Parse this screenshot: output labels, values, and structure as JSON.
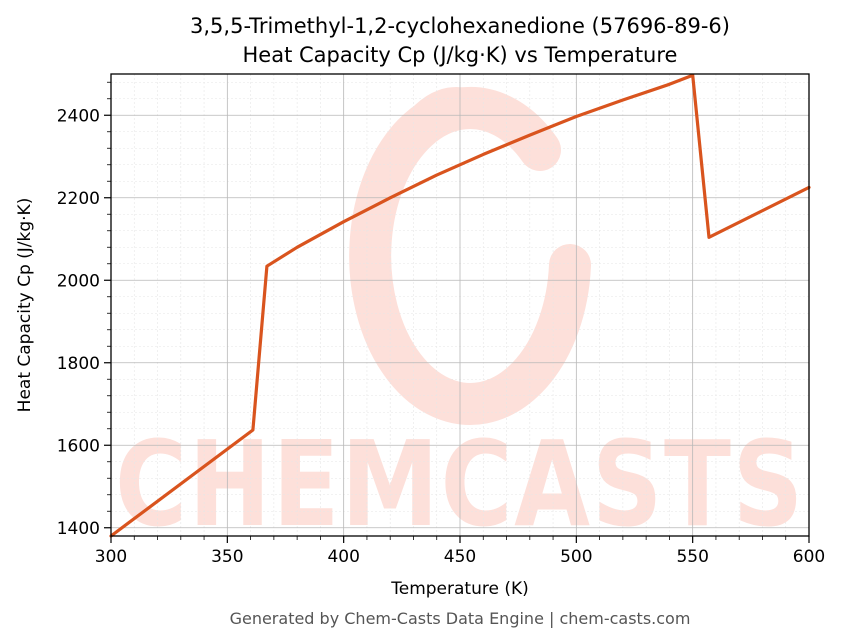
{
  "chart_data": {
    "type": "line",
    "title": "3,5,5-Trimethyl-1,2-cyclohexanedione (57696-89-6)",
    "subtitle": "Heat Capacity Cp (J/kg·K) vs Temperature",
    "xlabel": "Temperature (K)",
    "ylabel": "Heat Capacity Cp (J/kg·K)",
    "xlim": [
      300,
      600
    ],
    "ylim": [
      1380,
      2500
    ],
    "xticks": [
      300,
      350,
      400,
      450,
      500,
      550,
      600
    ],
    "yticks": [
      1400,
      1600,
      1800,
      2000,
      2200,
      2400
    ],
    "grid": true,
    "color": "#d9541e",
    "series": [
      {
        "x": [
          300,
          361,
          367,
          380,
          400,
          420,
          440,
          460,
          480,
          500,
          520,
          540,
          550,
          557,
          600
        ],
        "y": [
          1380,
          1637,
          2034,
          2080,
          2142,
          2200,
          2255,
          2305,
          2352,
          2397,
          2437,
          2475,
          2497,
          2104,
          2225
        ]
      }
    ]
  },
  "watermark": {
    "text": "CHEMCASTS",
    "color": "#fde0da"
  },
  "footer": "Generated by Chem-Casts Data Engine | chem-casts.com"
}
